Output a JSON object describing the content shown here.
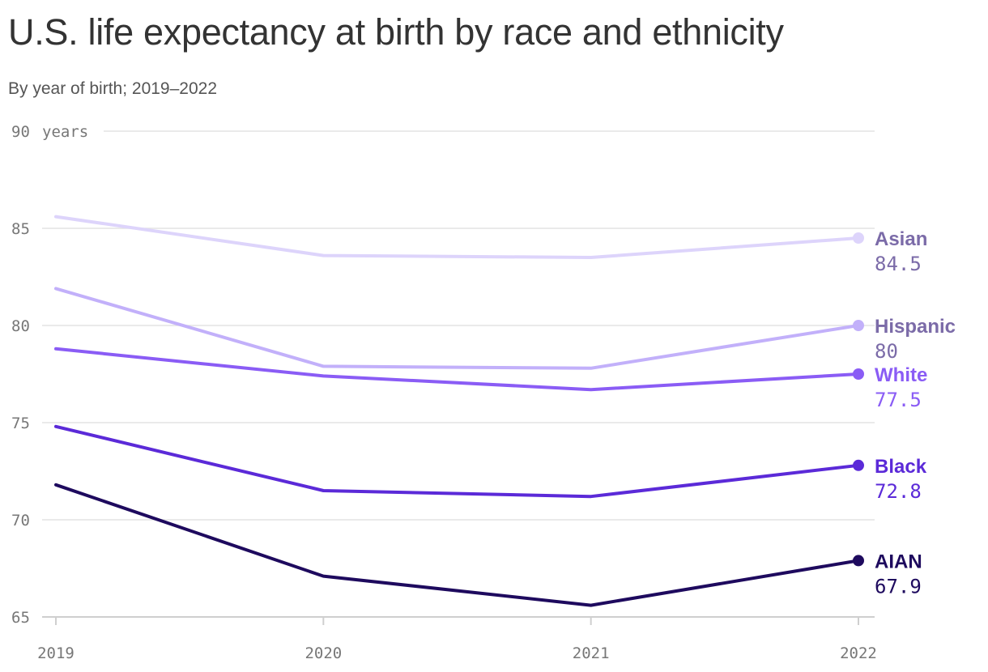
{
  "title": "U.S. life expectancy at birth by race and ethnicity",
  "subtitle": "By year of birth; 2019–2022",
  "chart_data": {
    "type": "line",
    "x": [
      "2019",
      "2020",
      "2021",
      "2022"
    ],
    "ylim": [
      65,
      90
    ],
    "yticks": [
      65,
      70,
      75,
      80,
      85,
      90
    ],
    "ytick_labels": [
      "65",
      "70",
      "75",
      "80",
      "85",
      "90"
    ],
    "y_unit": "years",
    "grid": true,
    "legend": "end-of-line labels",
    "series": [
      {
        "name": "Asian",
        "values": [
          85.6,
          83.6,
          83.5,
          84.5
        ],
        "end_label": "84.5",
        "color": "#ddd4fb",
        "label_color": "#7b6ba8"
      },
      {
        "name": "Hispanic",
        "values": [
          81.9,
          77.9,
          77.8,
          80.0
        ],
        "end_label": "80",
        "color": "#c2b0fa",
        "label_color": "#7b6ba8"
      },
      {
        "name": "White",
        "values": [
          78.8,
          77.4,
          76.7,
          77.5
        ],
        "end_label": "77.5",
        "color": "#8a5cf5",
        "label_color": "#8a5cf5"
      },
      {
        "name": "Black",
        "values": [
          74.8,
          71.5,
          71.2,
          72.8
        ],
        "end_label": "72.8",
        "color": "#5b2ad8",
        "label_color": "#5b2ad8"
      },
      {
        "name": "AIAN",
        "values": [
          71.8,
          67.1,
          65.6,
          67.9
        ],
        "end_label": "67.9",
        "color": "#1e0a5e",
        "label_color": "#1e0a5e"
      }
    ]
  }
}
